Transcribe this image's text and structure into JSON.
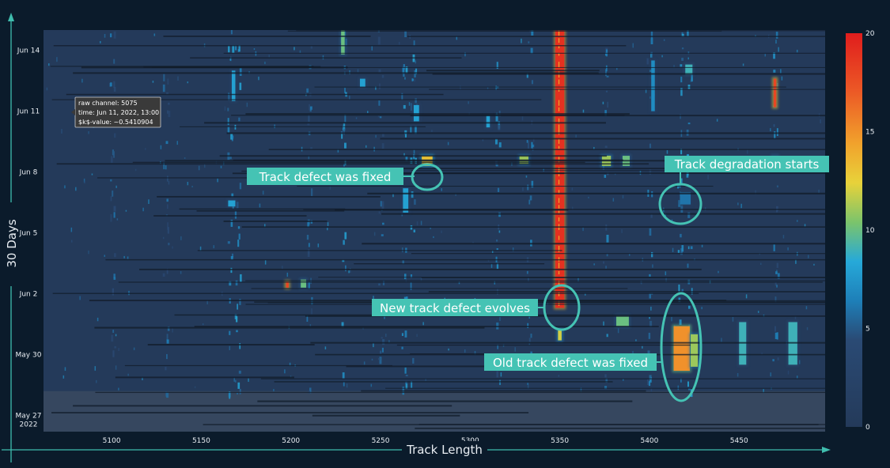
{
  "colors": {
    "background": "#0b1b2b",
    "plot_background": "#243a5a",
    "annotation": "#45c3b4",
    "axis_arrow": "#3fbdae"
  },
  "tooltip": {
    "line1": "raw channel: 5075",
    "line2": "time: Jun 11, 2022, 13:00",
    "line3": "$k$-value: ~0.5410904"
  },
  "annotations": [
    {
      "id": "fixed",
      "text": "Track defect was fixed"
    },
    {
      "id": "degradation",
      "text": "Track degradation starts"
    },
    {
      "id": "new-defect",
      "text": "New track defect evolves"
    },
    {
      "id": "old-fixed",
      "text": "Old track defect was fixed"
    }
  ],
  "chart_data": {
    "type": "heatmap",
    "title": "",
    "xlabel": "Track Length",
    "ylabel": "30 Days",
    "xlim": [
      5062,
      5498
    ],
    "x_ticks": [
      5100,
      5150,
      5200,
      5250,
      5300,
      5350,
      5400,
      5450
    ],
    "y_ticks": [
      {
        "day": 0,
        "label": "May 27",
        "label2": "2022"
      },
      {
        "day": 3,
        "label": "May 30"
      },
      {
        "day": 6,
        "label": "Jun 2"
      },
      {
        "day": 9,
        "label": "Jun 5"
      },
      {
        "day": 12,
        "label": "Jun 8"
      },
      {
        "day": 15,
        "label": "Jun 11"
      },
      {
        "day": 18,
        "label": "Jun 14"
      }
    ],
    "ylim_days": [
      -0.8,
      19.0
    ],
    "colorbar": {
      "min": 0,
      "max": 20,
      "ticks": [
        0,
        5,
        10,
        15,
        20
      ]
    },
    "no_data_region_days": [
      -0.8,
      1.2
    ],
    "features": [
      {
        "x": 5350,
        "x_width": 5,
        "day_from": 5.3,
        "day_to": 19.0,
        "value": 19
      },
      {
        "x": 5470,
        "x_width": 1.5,
        "day_from": 15.2,
        "day_to": 16.6,
        "value": 18
      },
      {
        "x": 5276,
        "x_width": 6,
        "day_from": 12.3,
        "day_to": 12.8,
        "value": 13
      },
      {
        "x": 5418,
        "x_width": 9,
        "day_from": 2.2,
        "day_to": 4.4,
        "value": 15
      },
      {
        "x": 5425,
        "x_width": 4,
        "day_from": 2.4,
        "day_to": 4.0,
        "value": 11
      },
      {
        "x": 5385,
        "x_width": 7,
        "day_from": 4.4,
        "day_to": 4.9,
        "value": 10
      },
      {
        "x": 5376,
        "x_width": 5,
        "day_from": 12.3,
        "day_to": 12.8,
        "value": 11
      },
      {
        "x": 5387,
        "x_width": 4,
        "day_from": 12.3,
        "day_to": 12.8,
        "value": 10
      },
      {
        "x": 5330,
        "x_width": 5,
        "day_from": 12.4,
        "day_to": 12.8,
        "value": 11
      },
      {
        "x": 5229,
        "x_width": 2,
        "day_from": 17.8,
        "day_to": 19.0,
        "value": 10
      },
      {
        "x": 5168,
        "x_width": 2,
        "day_from": 15.5,
        "day_to": 17.0,
        "value": 8
      },
      {
        "x": 5470,
        "x_width": 3,
        "day_from": 12.3,
        "day_to": 12.8,
        "value": 10
      },
      {
        "x": 5480,
        "x_width": 5,
        "day_from": 2.5,
        "day_to": 4.6,
        "value": 9
      },
      {
        "x": 5452,
        "x_width": 4,
        "day_from": 2.5,
        "day_to": 4.6,
        "value": 9
      },
      {
        "x": 5198,
        "x_width": 1.5,
        "day_from": 6.3,
        "day_to": 6.6,
        "value": 18
      },
      {
        "x": 5207,
        "x_width": 3,
        "day_from": 6.3,
        "day_to": 6.7,
        "value": 10
      },
      {
        "x": 5422,
        "x_width": 4,
        "day_from": 16.8,
        "day_to": 17.3,
        "value": 9
      },
      {
        "x": 5420,
        "x_width": 6,
        "day_from": 10.4,
        "day_to": 11.0,
        "value": 6
      },
      {
        "x": 5270,
        "x_width": 3,
        "day_from": 14.5,
        "day_to": 15.3,
        "value": 8
      },
      {
        "x": 5264,
        "x_width": 3,
        "day_from": 10.0,
        "day_to": 11.2,
        "value": 8
      },
      {
        "x": 5167,
        "x_width": 4,
        "day_from": 10.3,
        "day_to": 10.6,
        "value": 8
      },
      {
        "x": 5240,
        "x_width": 3,
        "day_from": 16.2,
        "day_to": 16.6,
        "value": 8
      },
      {
        "x": 5310,
        "x_width": 2,
        "day_from": 14.2,
        "day_to": 14.8,
        "value": 8
      },
      {
        "x": 5402,
        "x_width": 2,
        "day_from": 15.0,
        "day_to": 17.5,
        "value": 7
      },
      {
        "x": 5350,
        "x_width": 2,
        "day_from": 3.7,
        "day_to": 4.2,
        "value": 12
      }
    ],
    "streaks": [
      {
        "x": 5166,
        "value": 5
      },
      {
        "x": 5170,
        "value": 5
      },
      {
        "x": 5229,
        "value": 5
      },
      {
        "x": 5263,
        "value": 5
      },
      {
        "x": 5268,
        "value": 5
      },
      {
        "x": 5315,
        "value": 4
      },
      {
        "x": 5333,
        "value": 4
      },
      {
        "x": 5375,
        "value": 4
      },
      {
        "x": 5400,
        "value": 4
      },
      {
        "x": 5417,
        "value": 5
      },
      {
        "x": 5422,
        "value": 5
      },
      {
        "x": 5470,
        "value": 4
      },
      {
        "x": 5100,
        "value": 3
      },
      {
        "x": 5130,
        "value": 3
      },
      {
        "x": 5210,
        "value": 3
      },
      {
        "x": 5250,
        "value": 3
      }
    ]
  }
}
